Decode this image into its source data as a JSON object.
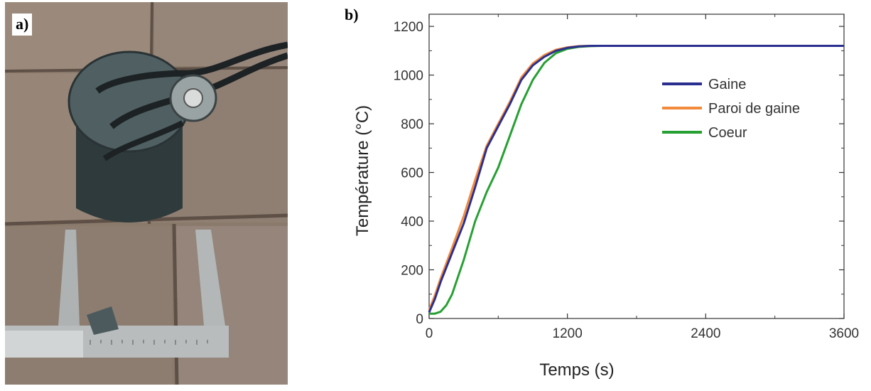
{
  "panels": {
    "a_label": "a)",
    "b_label": "b)"
  },
  "photo": {
    "subject": "crucible-with-caliper"
  },
  "chart_data": {
    "type": "line",
    "title": "",
    "xlabel": "Temps (s)",
    "ylabel": "Température (°C)",
    "xlim": [
      0,
      3600
    ],
    "ylim": [
      0,
      1250
    ],
    "xticks": [
      0,
      1200,
      2400,
      3600
    ],
    "yticks": [
      0,
      200,
      400,
      600,
      800,
      1000,
      1200
    ],
    "grid": false,
    "legend_position": "top-right",
    "series": [
      {
        "name": "Gaine",
        "color": "#2a2f8f",
        "x": [
          0,
          50,
          100,
          200,
          300,
          400,
          500,
          600,
          700,
          800,
          900,
          1000,
          1100,
          1200,
          1300,
          1400,
          1600,
          2000,
          2400,
          3000,
          3600
        ],
        "y": [
          25,
          80,
          150,
          270,
          390,
          540,
          700,
          790,
          880,
          980,
          1040,
          1075,
          1100,
          1112,
          1118,
          1120,
          1120,
          1120,
          1120,
          1120,
          1120
        ]
      },
      {
        "name": "Paroi de gaine",
        "color": "#f28a3c",
        "x": [
          0,
          50,
          100,
          200,
          300,
          400,
          500,
          600,
          700,
          800,
          900,
          1000,
          1100,
          1200,
          1300,
          1400,
          1600,
          2000,
          2400,
          3000,
          3600
        ],
        "y": [
          35,
          95,
          165,
          290,
          420,
          570,
          710,
          800,
          890,
          990,
          1048,
          1082,
          1104,
          1114,
          1119,
          1120,
          1120,
          1120,
          1120,
          1120,
          1120
        ]
      },
      {
        "name": "Coeur",
        "color": "#27a033",
        "x": [
          0,
          50,
          100,
          150,
          200,
          300,
          400,
          500,
          600,
          700,
          800,
          900,
          1000,
          1100,
          1200,
          1300,
          1400,
          1500,
          1600,
          2000,
          2400,
          3000,
          3600
        ],
        "y": [
          20,
          20,
          28,
          55,
          100,
          240,
          400,
          520,
          620,
          750,
          880,
          980,
          1050,
          1090,
          1108,
          1116,
          1119,
          1120,
          1120,
          1120,
          1120,
          1120,
          1120
        ]
      }
    ]
  }
}
